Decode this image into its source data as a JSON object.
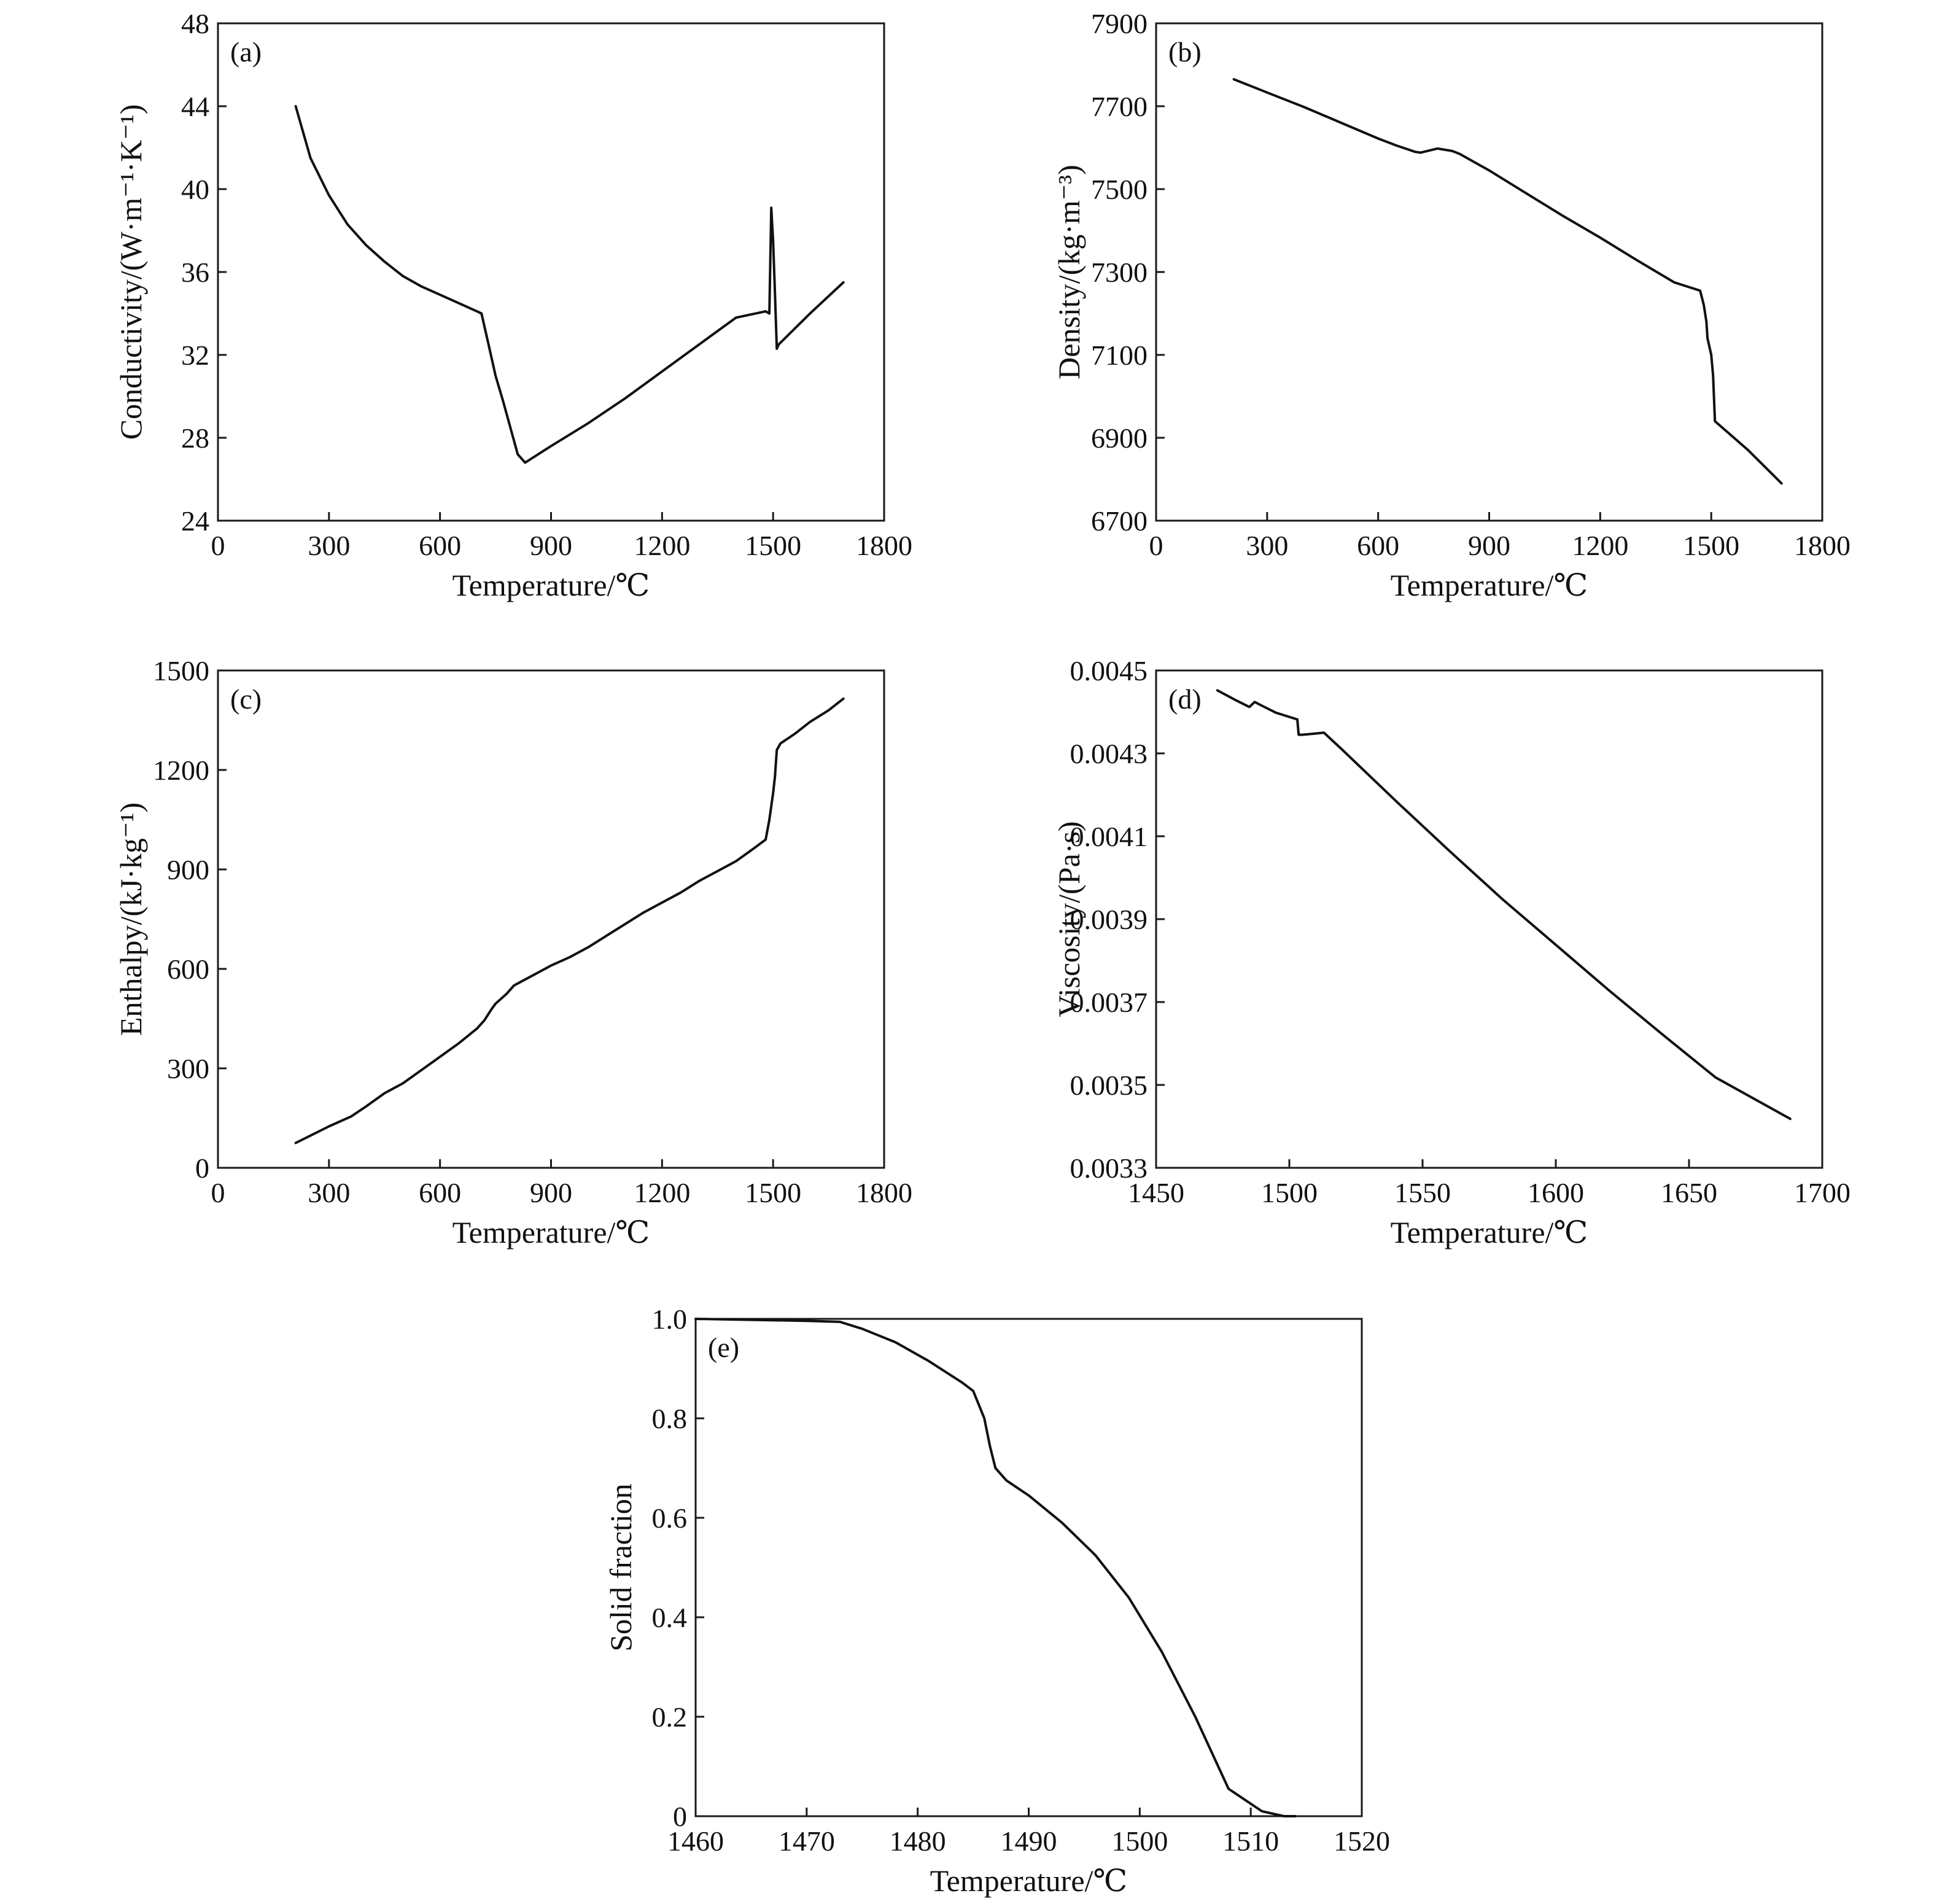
{
  "chart_data": [
    {
      "type": "line",
      "panel_label": "(a)",
      "xlabel": "Temperature/℃",
      "ylabel": "Conductivity/(W·m⁻¹·K⁻¹)",
      "xlim": [
        0,
        1800
      ],
      "ylim": [
        24,
        48
      ],
      "xticks": [
        0,
        300,
        600,
        900,
        1200,
        1500,
        1800
      ],
      "yticks": [
        24,
        28,
        32,
        36,
        40,
        44,
        48
      ],
      "series": [
        {
          "x": [
            210,
            250,
            300,
            350,
            400,
            450,
            500,
            550,
            600,
            650,
            700,
            712,
            730,
            750,
            770,
            790,
            810,
            830,
            900,
            1000,
            1100,
            1200,
            1300,
            1400,
            1480,
            1490,
            1495,
            1500,
            1505,
            1510,
            1515,
            1600,
            1690
          ],
          "y": [
            44.0,
            41.5,
            39.7,
            38.3,
            37.3,
            36.5,
            35.8,
            35.3,
            34.9,
            34.5,
            34.1,
            34.0,
            32.6,
            31.0,
            29.8,
            28.5,
            27.2,
            26.8,
            27.6,
            28.7,
            29.9,
            31.2,
            32.5,
            33.8,
            34.1,
            34.0,
            39.1,
            37.5,
            35.0,
            32.3,
            32.5,
            34.0,
            35.5
          ]
        }
      ]
    },
    {
      "type": "line",
      "panel_label": "(b)",
      "xlabel": "Temperature/℃",
      "ylabel": "Density/(kg·m⁻³)",
      "xlim": [
        0,
        1800
      ],
      "ylim": [
        6700,
        7900
      ],
      "xticks": [
        0,
        300,
        600,
        900,
        1200,
        1500,
        1800
      ],
      "yticks": [
        6700,
        6900,
        7100,
        7300,
        7500,
        7700,
        7900
      ],
      "series": [
        {
          "x": [
            210,
            300,
            400,
            500,
            600,
            650,
            700,
            715,
            760,
            800,
            820,
            900,
            1000,
            1100,
            1200,
            1300,
            1400,
            1470,
            1480,
            1487,
            1490,
            1500,
            1505,
            1510,
            1600,
            1690
          ],
          "y": [
            7765,
            7733,
            7698,
            7660,
            7622,
            7605,
            7590,
            7588,
            7598,
            7592,
            7585,
            7545,
            7490,
            7435,
            7383,
            7328,
            7275,
            7255,
            7220,
            7180,
            7140,
            7100,
            7050,
            6940,
            6870,
            6790
          ]
        }
      ]
    },
    {
      "type": "line",
      "panel_label": "(c)",
      "xlabel": "Temperature/℃",
      "ylabel": "Enthalpy/(kJ·kg⁻¹)",
      "xlim": [
        0,
        1800
      ],
      "ylim": [
        0,
        1500
      ],
      "xticks": [
        0,
        300,
        600,
        900,
        1200,
        1500,
        1800
      ],
      "yticks": [
        0,
        300,
        600,
        900,
        1200,
        1500
      ],
      "series": [
        {
          "x": [
            210,
            300,
            360,
            400,
            450,
            500,
            550,
            600,
            650,
            700,
            720,
            740,
            750,
            760,
            780,
            800,
            850,
            900,
            950,
            1000,
            1050,
            1100,
            1150,
            1200,
            1250,
            1300,
            1350,
            1400,
            1450,
            1480,
            1490,
            1500,
            1505,
            1510,
            1520,
            1560,
            1600,
            1650,
            1690
          ],
          "y": [
            75,
            125,
            155,
            185,
            225,
            255,
            295,
            335,
            375,
            420,
            445,
            480,
            495,
            505,
            525,
            550,
            580,
            610,
            635,
            665,
            700,
            735,
            770,
            800,
            830,
            865,
            895,
            925,
            965,
            990,
            1050,
            1130,
            1180,
            1260,
            1280,
            1310,
            1345,
            1380,
            1415
          ]
        }
      ]
    },
    {
      "type": "line",
      "panel_label": "(d)",
      "xlabel": "Temperature/℃",
      "ylabel": "Viscosity/(Pa·s)",
      "xlim": [
        1450,
        1700
      ],
      "ylim": [
        0.0033,
        0.0045
      ],
      "xticks": [
        1450,
        1500,
        1550,
        1600,
        1650,
        1700
      ],
      "yticks": [
        0.0033,
        0.0035,
        0.0037,
        0.0039,
        0.0041,
        0.0043,
        0.0045
      ],
      "tick_labels_y": [
        "0.0033",
        "0.0035",
        "0.0037",
        "0.0039",
        "0.0041",
        "0.0043",
        "0.0045"
      ],
      "series": [
        {
          "x": [
            1473,
            1480,
            1485,
            1487,
            1490,
            1495,
            1500,
            1503,
            1503.5,
            1505,
            1510,
            1513,
            1520,
            1540,
            1560,
            1580,
            1600,
            1620,
            1640,
            1660,
            1688
          ],
          "y": [
            0.004452,
            0.004428,
            0.004412,
            0.004424,
            0.004414,
            0.004398,
            0.004388,
            0.004382,
            0.004345,
            0.004345,
            0.004348,
            0.00435,
            0.004308,
            0.004185,
            0.004065,
            0.003948,
            0.003838,
            0.003728,
            0.003622,
            0.003518,
            0.003418
          ]
        }
      ]
    },
    {
      "type": "line",
      "panel_label": "(e)",
      "xlabel": "Temperature/℃",
      "ylabel": "Solid fraction",
      "xlim": [
        1460,
        1520
      ],
      "ylim": [
        0,
        1.0
      ],
      "xticks": [
        1460,
        1470,
        1480,
        1490,
        1500,
        1510,
        1520
      ],
      "yticks": [
        0,
        0.2,
        0.4,
        0.6,
        0.8,
        1.0
      ],
      "tick_labels_y": [
        "0",
        "0.2",
        "0.4",
        "0.6",
        "0.8",
        "1.0"
      ],
      "series": [
        {
          "x": [
            1460,
            1465,
            1470,
            1473,
            1475,
            1478,
            1481,
            1484,
            1485,
            1486,
            1486.5,
            1487,
            1488,
            1490,
            1493,
            1496,
            1499,
            1502,
            1505,
            1508,
            1511,
            1513,
            1514
          ],
          "y": [
            1.0,
            0.998,
            0.996,
            0.994,
            0.98,
            0.953,
            0.915,
            0.872,
            0.855,
            0.8,
            0.745,
            0.7,
            0.675,
            0.645,
            0.59,
            0.525,
            0.44,
            0.33,
            0.2,
            0.055,
            0.01,
            0.0,
            0.0
          ]
        }
      ]
    }
  ]
}
